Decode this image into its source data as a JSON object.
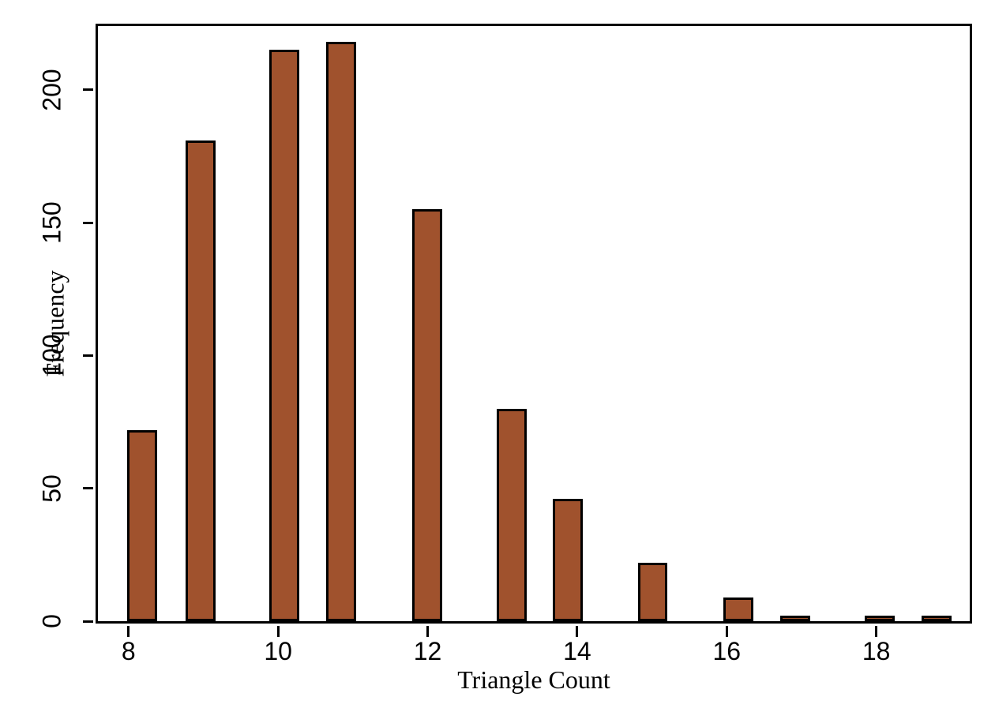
{
  "figure": {
    "background": "#ffffff"
  },
  "chart_data": {
    "type": "bar",
    "title": "",
    "xlabel": "Triangle Count",
    "ylabel": "Frequency",
    "x": [
      8,
      9,
      10,
      11,
      12,
      13,
      14,
      15,
      16,
      17,
      18,
      19
    ],
    "values": [
      72,
      181,
      215,
      218,
      155,
      80,
      46,
      22,
      9,
      2,
      2,
      2
    ],
    "bin_centers": [
      8.18,
      8.96,
      10.08,
      10.84,
      11.99,
      13.12,
      13.87,
      15.01,
      16.16,
      16.92,
      18.05,
      18.81
    ],
    "bar_width": 0.4,
    "x_ticks": [
      8,
      10,
      12,
      14,
      16,
      18
    ],
    "y_ticks": [
      0,
      50,
      100,
      150,
      200
    ],
    "xlim": [
      7.59,
      19.25
    ],
    "ylim": [
      0,
      224
    ],
    "grid": false,
    "legend": false,
    "bar_fill": "#a0522d",
    "bar_edge": "#000000",
    "axis_color": "#000000"
  }
}
